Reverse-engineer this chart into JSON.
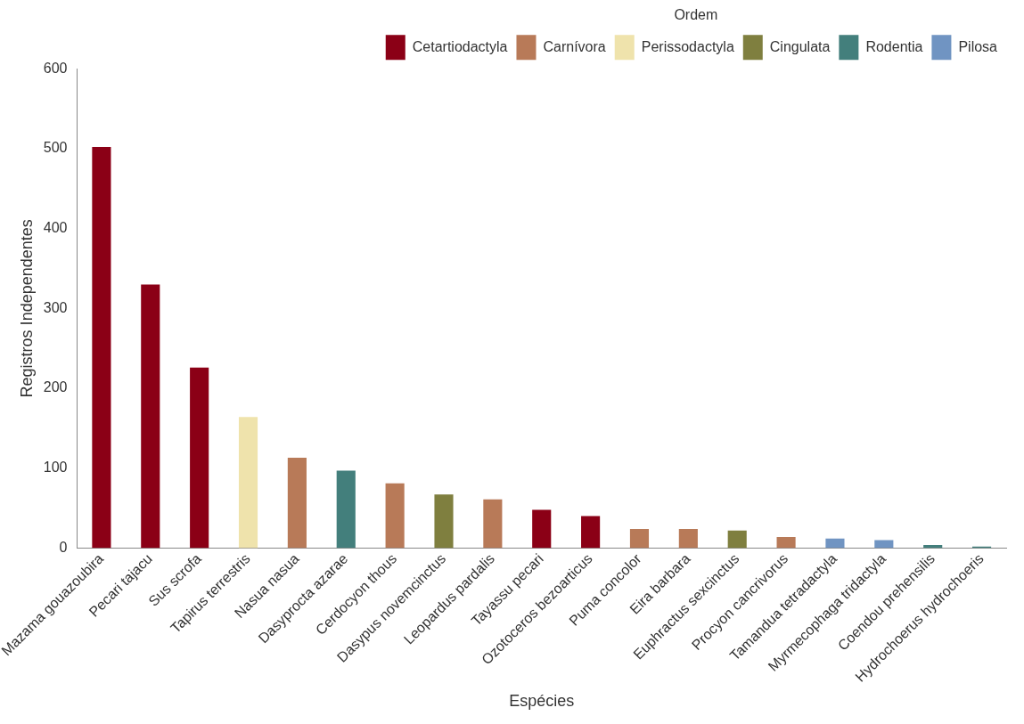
{
  "chart_data": {
    "type": "bar",
    "xlabel": "Espécies",
    "ylabel": "Registros Independentes",
    "legend_title": "Ordem",
    "legend": "top right",
    "grid": false,
    "categories": [
      "Mazama gouazoubira",
      "Pecari tajacu",
      "Sus scrofa",
      "Tapirus terrestris",
      "Nasua nasua",
      "Dasyprocta azarae",
      "Cerdocyon thous",
      "Dasypus novemcinctus",
      "Leopardus pardalis",
      "Tayassu pecari",
      "Ozotoceros bezoarticus",
      "Puma concolor",
      "Eira barbara",
      "Euphractus sexcinctus",
      "Procyon cancrivorus",
      "Tamandua tetradactyla",
      "Myrmecophaga tridactyla",
      "Coendou prehensilis",
      "Hydrochoerus hydrochoeris"
    ],
    "ylim": [
      0,
      600
    ],
    "yticks": [
      0,
      100,
      200,
      300,
      400,
      500,
      600
    ],
    "series": [
      {
        "name": "Cetartiodactyla",
        "color": "#8b0016",
        "values": [
          502,
          330,
          226,
          null,
          null,
          null,
          null,
          null,
          null,
          48,
          40,
          null,
          null,
          null,
          null,
          null,
          null,
          null,
          null
        ]
      },
      {
        "name": "Carnívora",
        "color": "#b87a58",
        "values": [
          null,
          null,
          null,
          null,
          113,
          null,
          81,
          null,
          61,
          null,
          null,
          24,
          24,
          null,
          14,
          null,
          null,
          null,
          null
        ]
      },
      {
        "name": "Perissodactyla",
        "color": "#efe3ac",
        "values": [
          null,
          null,
          null,
          164,
          null,
          null,
          null,
          null,
          null,
          null,
          null,
          null,
          null,
          null,
          null,
          null,
          null,
          null,
          null
        ]
      },
      {
        "name": "Cingulata",
        "color": "#7f7f3f",
        "values": [
          null,
          null,
          null,
          null,
          null,
          null,
          null,
          67,
          null,
          null,
          null,
          null,
          null,
          22,
          null,
          null,
          null,
          null,
          null
        ]
      },
      {
        "name": "Rodentia",
        "color": "#437f7c",
        "values": [
          null,
          null,
          null,
          null,
          null,
          97,
          null,
          null,
          null,
          null,
          null,
          null,
          null,
          null,
          null,
          null,
          null,
          4,
          2
        ]
      },
      {
        "name": "Pilosa",
        "color": "#7094c2",
        "values": [
          null,
          null,
          null,
          null,
          null,
          null,
          null,
          null,
          null,
          null,
          null,
          null,
          null,
          null,
          null,
          12,
          10,
          null,
          null
        ]
      }
    ]
  }
}
